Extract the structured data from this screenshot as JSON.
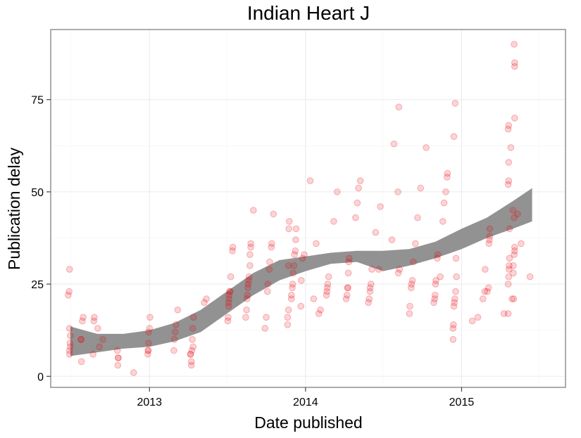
{
  "chart_data": {
    "type": "scatter",
    "title": "Indian Heart J",
    "xlabel": "Date published",
    "ylabel": "Publication delay",
    "x_ticks": [
      "2013-01-01",
      "2014-01-01",
      "2015-01-01"
    ],
    "x_tick_labels": [
      "2013",
      "2014",
      "2015"
    ],
    "y_ticks": [
      0,
      25,
      50,
      75
    ],
    "y_tick_labels": [
      "0",
      "25",
      "50",
      "75"
    ],
    "xlim": [
      "2012-05-15",
      "2015-09-01"
    ],
    "ylim": [
      -3,
      94
    ],
    "grid": true,
    "point_color": "#e8000b",
    "band_color": "#8c8c8c",
    "series": [
      {
        "values": [
          [
            "2012-06-25",
            22
          ],
          [
            "2012-06-27",
            23
          ],
          [
            "2012-06-28",
            29
          ],
          [
            "2012-06-28",
            6
          ],
          [
            "2012-06-28",
            7
          ],
          [
            "2012-06-29",
            9
          ],
          [
            "2012-06-30",
            11
          ],
          [
            "2012-06-28",
            13
          ],
          [
            "2012-06-30",
            8
          ],
          [
            "2012-07-25",
            10
          ],
          [
            "2012-07-25",
            10
          ],
          [
            "2012-07-26",
            4
          ],
          [
            "2012-07-28",
            15
          ],
          [
            "2012-07-30",
            16
          ],
          [
            "2012-08-22",
            6
          ],
          [
            "2012-08-24",
            15
          ],
          [
            "2012-08-25",
            16
          ],
          [
            "2012-09-02",
            13
          ],
          [
            "2012-09-06",
            8
          ],
          [
            "2012-09-14",
            10
          ],
          [
            "2012-10-18",
            7
          ],
          [
            "2012-10-19",
            3
          ],
          [
            "2012-10-20",
            5
          ],
          [
            "2012-10-20",
            5
          ],
          [
            "2012-11-25",
            1
          ],
          [
            "2012-12-28",
            6
          ],
          [
            "2012-12-29",
            7
          ],
          [
            "2012-12-29",
            7
          ],
          [
            "2012-12-30",
            9
          ],
          [
            "2012-12-30",
            12
          ],
          [
            "2013-01-01",
            13
          ],
          [
            "2013-01-02",
            16
          ],
          [
            "2013-02-27",
            7
          ],
          [
            "2013-02-28",
            10
          ],
          [
            "2013-03-02",
            12
          ],
          [
            "2013-03-04",
            14
          ],
          [
            "2013-03-08",
            18
          ],
          [
            "2013-04-07",
            6
          ],
          [
            "2013-04-07",
            6
          ],
          [
            "2013-04-09",
            3
          ],
          [
            "2013-04-09",
            4
          ],
          [
            "2013-04-10",
            7
          ],
          [
            "2013-04-11",
            10
          ],
          [
            "2013-04-12",
            13
          ],
          [
            "2013-04-14",
            16
          ],
          [
            "2013-04-13",
            8
          ],
          [
            "2013-05-09",
            20
          ],
          [
            "2013-05-14",
            21
          ],
          [
            "2013-07-03",
            15
          ],
          [
            "2013-07-04",
            16
          ],
          [
            "2013-07-05",
            19
          ],
          [
            "2013-07-05",
            20
          ],
          [
            "2013-07-06",
            21
          ],
          [
            "2013-07-06",
            22
          ],
          [
            "2013-07-07",
            23
          ],
          [
            "2013-07-09",
            23
          ],
          [
            "2013-07-10",
            27
          ],
          [
            "2013-07-14",
            34
          ],
          [
            "2013-07-15",
            35
          ],
          [
            "2013-08-14",
            16
          ],
          [
            "2013-08-16",
            18
          ],
          [
            "2013-08-17",
            21
          ],
          [
            "2013-08-18",
            22
          ],
          [
            "2013-08-19",
            24
          ],
          [
            "2013-08-20",
            25
          ],
          [
            "2013-08-21",
            26
          ],
          [
            "2013-08-22",
            27
          ],
          [
            "2013-08-24",
            30
          ],
          [
            "2013-08-24",
            33
          ],
          [
            "2013-08-26",
            35
          ],
          [
            "2013-08-26",
            36
          ],
          [
            "2013-09-01",
            45
          ],
          [
            "2013-09-28",
            13
          ],
          [
            "2013-10-01",
            16
          ],
          [
            "2013-10-04",
            23
          ],
          [
            "2013-10-05",
            25
          ],
          [
            "2013-10-08",
            29
          ],
          [
            "2013-10-09",
            31
          ],
          [
            "2013-10-13",
            35
          ],
          [
            "2013-10-14",
            36
          ],
          [
            "2013-10-18",
            44
          ],
          [
            "2013-11-20",
            14
          ],
          [
            "2013-11-20",
            16
          ],
          [
            "2013-11-22",
            18
          ],
          [
            "2013-11-22",
            30
          ],
          [
            "2013-11-23",
            40
          ],
          [
            "2013-11-24",
            42
          ],
          [
            "2013-11-29",
            21
          ],
          [
            "2013-11-29",
            22
          ],
          [
            "2013-12-01",
            24
          ],
          [
            "2013-12-02",
            25
          ],
          [
            "2013-12-03",
            28
          ],
          [
            "2013-12-05",
            30
          ],
          [
            "2013-12-06",
            33
          ],
          [
            "2013-12-08",
            34
          ],
          [
            "2013-12-09",
            37
          ],
          [
            "2013-12-10",
            40
          ],
          [
            "2013-12-21",
            19
          ],
          [
            "2013-12-22",
            26
          ],
          [
            "2013-12-25",
            32
          ],
          [
            "2013-12-29",
            33
          ],
          [
            "2014-01-12",
            53
          ],
          [
            "2014-01-20",
            21
          ],
          [
            "2014-01-26",
            36
          ],
          [
            "2014-02-01",
            17
          ],
          [
            "2014-02-05",
            18
          ],
          [
            "2014-02-19",
            22
          ],
          [
            "2014-02-20",
            23
          ],
          [
            "2014-02-21",
            24
          ],
          [
            "2014-02-22",
            25
          ],
          [
            "2014-02-24",
            27
          ],
          [
            "2014-03-08",
            42
          ],
          [
            "2014-03-16",
            50
          ],
          [
            "2014-04-06",
            21
          ],
          [
            "2014-04-08",
            22
          ],
          [
            "2014-04-09",
            24
          ],
          [
            "2014-04-10",
            24
          ],
          [
            "2014-04-11",
            28
          ],
          [
            "2014-04-12",
            31
          ],
          [
            "2014-04-13",
            32
          ],
          [
            "2014-04-28",
            43
          ],
          [
            "2014-05-02",
            47
          ],
          [
            "2014-05-05",
            51
          ],
          [
            "2014-05-09",
            53
          ],
          [
            "2014-05-28",
            20
          ],
          [
            "2014-05-30",
            21
          ],
          [
            "2014-06-01",
            23
          ],
          [
            "2014-06-01",
            24
          ],
          [
            "2014-06-03",
            25
          ],
          [
            "2014-06-05",
            29
          ],
          [
            "2014-06-14",
            39
          ],
          [
            "2014-06-21",
            29
          ],
          [
            "2014-06-25",
            46
          ],
          [
            "2014-07-22",
            37
          ],
          [
            "2014-07-27",
            63
          ],
          [
            "2014-08-05",
            50
          ],
          [
            "2014-08-07",
            73
          ],
          [
            "2014-08-06",
            28
          ],
          [
            "2014-08-09",
            29
          ],
          [
            "2014-09-01",
            17
          ],
          [
            "2014-09-02",
            19
          ],
          [
            "2014-09-05",
            24
          ],
          [
            "2014-09-06",
            25
          ],
          [
            "2014-09-08",
            26
          ],
          [
            "2014-09-10",
            31
          ],
          [
            "2014-09-15",
            36
          ],
          [
            "2014-09-20",
            43
          ],
          [
            "2014-09-27",
            51
          ],
          [
            "2014-10-10",
            62
          ],
          [
            "2014-10-28",
            20
          ],
          [
            "2014-10-30",
            21
          ],
          [
            "2014-10-31",
            22
          ],
          [
            "2014-11-01",
            25
          ],
          [
            "2014-11-02",
            26
          ],
          [
            "2014-11-05",
            32
          ],
          [
            "2014-11-06",
            33
          ],
          [
            "2014-11-12",
            27
          ],
          [
            "2014-11-18",
            42
          ],
          [
            "2014-11-21",
            47
          ],
          [
            "2014-11-25",
            50
          ],
          [
            "2014-11-28",
            54
          ],
          [
            "2014-11-29",
            55
          ],
          [
            "2014-12-12",
            10
          ],
          [
            "2014-12-12",
            13
          ],
          [
            "2014-12-13",
            14
          ],
          [
            "2014-12-14",
            19
          ],
          [
            "2014-12-15",
            20
          ],
          [
            "2014-12-16",
            21
          ],
          [
            "2014-12-18",
            23
          ],
          [
            "2014-12-20",
            27
          ],
          [
            "2014-12-19",
            32
          ],
          [
            "2014-12-14",
            65
          ],
          [
            "2014-12-17",
            74
          ],
          [
            "2015-01-26",
            15
          ],
          [
            "2015-02-08",
            16
          ],
          [
            "2015-02-20",
            21
          ],
          [
            "2015-02-24",
            23
          ],
          [
            "2015-02-25",
            29
          ],
          [
            "2015-03-02",
            23
          ],
          [
            "2015-03-05",
            24
          ],
          [
            "2015-03-06",
            36
          ],
          [
            "2015-03-07",
            37
          ],
          [
            "2015-03-08",
            38
          ],
          [
            "2015-03-08",
            40
          ],
          [
            "2015-04-10",
            17
          ],
          [
            "2015-04-20",
            17
          ],
          [
            "2015-04-20",
            25
          ],
          [
            "2015-04-21",
            27
          ],
          [
            "2015-04-22",
            29
          ],
          [
            "2015-04-22",
            30
          ],
          [
            "2015-04-23",
            32
          ],
          [
            "2015-04-23",
            40
          ],
          [
            "2015-04-20",
            52
          ],
          [
            "2015-04-21",
            53
          ],
          [
            "2015-04-21",
            58
          ],
          [
            "2015-04-20",
            67
          ],
          [
            "2015-04-21",
            68
          ],
          [
            "2015-04-26",
            62
          ],
          [
            "2015-04-29",
            21
          ],
          [
            "2015-05-03",
            21
          ],
          [
            "2015-05-02",
            28
          ],
          [
            "2015-05-02",
            30
          ],
          [
            "2015-05-04",
            33
          ],
          [
            "2015-05-05",
            34
          ],
          [
            "2015-05-05",
            35
          ],
          [
            "2015-05-04",
            43
          ],
          [
            "2015-05-01",
            45
          ],
          [
            "2015-05-05",
            84
          ],
          [
            "2015-05-05",
            85
          ],
          [
            "2015-05-04",
            90
          ],
          [
            "2015-05-05",
            70
          ],
          [
            "2015-05-12",
            44
          ],
          [
            "2015-05-20",
            36
          ],
          [
            "2015-06-10",
            27
          ]
        ]
      }
    ],
    "smooth_band": {
      "x": [
        "2012-06-30",
        "2012-09-01",
        "2012-11-01",
        "2013-01-01",
        "2013-03-01",
        "2013-05-01",
        "2013-07-01",
        "2013-09-01",
        "2013-11-01",
        "2014-01-01",
        "2014-03-01",
        "2014-05-01",
        "2014-07-01",
        "2014-09-01",
        "2014-11-01",
        "2015-01-01",
        "2015-03-01",
        "2015-05-01",
        "2015-06-15"
      ],
      "lower": [
        5.5,
        6.5,
        7.5,
        8,
        9.5,
        12,
        17,
        22,
        26,
        28.5,
        30.5,
        31,
        28.5,
        30,
        32,
        34.5,
        37.5,
        40,
        42
      ],
      "upper": [
        13.5,
        11.5,
        11.5,
        12.5,
        14.5,
        18,
        23,
        28,
        31.5,
        32.5,
        33.5,
        34,
        34,
        34.5,
        36.5,
        40,
        43,
        47.5,
        51
      ]
    }
  }
}
